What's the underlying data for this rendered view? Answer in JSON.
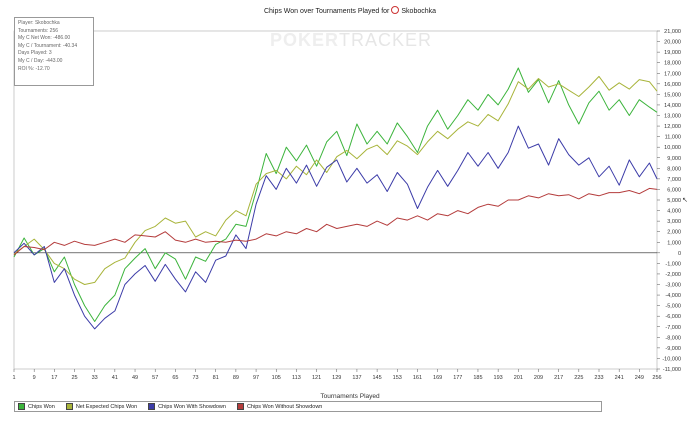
{
  "title_prefix": "Chips Won over Tournaments Played for",
  "title_player": "Skobochka",
  "stats": [
    "Player: Skobochka",
    "Tournaments: 256",
    "My C Net Won: -486.00",
    "My C / Tournament: -40.34",
    "Days Played: 3",
    "My C / Day: -443.00",
    "ROI %: -12.70"
  ],
  "watermark": {
    "a": "POKER",
    "b": "TRACKER"
  },
  "cursor_icon": "mouse-cursor-icon",
  "chart_data": {
    "type": "line",
    "xlabel": "Tournaments Played",
    "x_ticks": [
      "1",
      "9",
      "17",
      "25",
      "33",
      "41",
      "49",
      "57",
      "65",
      "73",
      "81",
      "89",
      "97",
      "105",
      "113",
      "121",
      "129",
      "137",
      "145",
      "153",
      "161",
      "169",
      "177",
      "185",
      "193",
      "201",
      "209",
      "217",
      "225",
      "233",
      "241",
      "249",
      "256"
    ],
    "y_ticks": [
      "21,000",
      "20,000",
      "19,000",
      "18,000",
      "17,000",
      "16,000",
      "15,000",
      "14,000",
      "13,000",
      "12,000",
      "11,000",
      "10,000",
      "9,000",
      "8,000",
      "7,000",
      "6,000",
      "5,000",
      "4,000",
      "3,000",
      "2,000",
      "1,000",
      "0",
      "-1,000",
      "-2,000",
      "-3,000",
      "-4,000",
      "-5,000",
      "-6,000",
      "-7,000",
      "-8,000",
      "-9,000",
      "-10,000",
      "-11,000"
    ],
    "xlim": [
      1,
      256
    ],
    "ylim": [
      -11000,
      21000
    ],
    "series": [
      {
        "name": "Chips Won",
        "color": "#3cb43c",
        "points": [
          [
            1,
            -400
          ],
          [
            5,
            1400
          ],
          [
            9,
            -200
          ],
          [
            13,
            400
          ],
          [
            17,
            -1800
          ],
          [
            21,
            -400
          ],
          [
            25,
            -3000
          ],
          [
            29,
            -5000
          ],
          [
            33,
            -6500
          ],
          [
            37,
            -5000
          ],
          [
            41,
            -4000
          ],
          [
            45,
            -1500
          ],
          [
            49,
            -500
          ],
          [
            53,
            400
          ],
          [
            57,
            -1500
          ],
          [
            61,
            0
          ],
          [
            65,
            -600
          ],
          [
            69,
            -2500
          ],
          [
            73,
            -400
          ],
          [
            77,
            -800
          ],
          [
            81,
            800
          ],
          [
            85,
            1300
          ],
          [
            89,
            2700
          ],
          [
            93,
            2500
          ],
          [
            97,
            5800
          ],
          [
            101,
            9400
          ],
          [
            105,
            7500
          ],
          [
            109,
            10000
          ],
          [
            113,
            8700
          ],
          [
            117,
            10200
          ],
          [
            121,
            8200
          ],
          [
            125,
            10500
          ],
          [
            129,
            11500
          ],
          [
            133,
            9200
          ],
          [
            137,
            12200
          ],
          [
            141,
            10300
          ],
          [
            145,
            11500
          ],
          [
            149,
            10300
          ],
          [
            153,
            12300
          ],
          [
            157,
            11000
          ],
          [
            161,
            9500
          ],
          [
            165,
            12000
          ],
          [
            169,
            13500
          ],
          [
            173,
            11700
          ],
          [
            177,
            13000
          ],
          [
            181,
            14500
          ],
          [
            185,
            13500
          ],
          [
            189,
            15000
          ],
          [
            193,
            14000
          ],
          [
            197,
            15500
          ],
          [
            201,
            17500
          ],
          [
            205,
            15200
          ],
          [
            209,
            16400
          ],
          [
            213,
            14200
          ],
          [
            217,
            16300
          ],
          [
            221,
            14000
          ],
          [
            225,
            12200
          ],
          [
            229,
            14200
          ],
          [
            233,
            15300
          ],
          [
            237,
            13500
          ],
          [
            241,
            14500
          ],
          [
            245,
            13000
          ],
          [
            249,
            14500
          ],
          [
            253,
            13800
          ],
          [
            256,
            13300
          ]
        ]
      },
      {
        "name": "Net Expected Chips Won",
        "color": "#a8b43a",
        "points": [
          [
            1,
            -100
          ],
          [
            5,
            600
          ],
          [
            9,
            1300
          ],
          [
            13,
            300
          ],
          [
            17,
            -1000
          ],
          [
            21,
            -1500
          ],
          [
            25,
            -2500
          ],
          [
            29,
            -3000
          ],
          [
            33,
            -2800
          ],
          [
            37,
            -1500
          ],
          [
            41,
            -900
          ],
          [
            45,
            -500
          ],
          [
            49,
            1000
          ],
          [
            53,
            2100
          ],
          [
            57,
            2500
          ],
          [
            61,
            3300
          ],
          [
            65,
            2800
          ],
          [
            69,
            3000
          ],
          [
            73,
            1500
          ],
          [
            77,
            2000
          ],
          [
            81,
            1600
          ],
          [
            85,
            3100
          ],
          [
            89,
            4000
          ],
          [
            93,
            3500
          ],
          [
            97,
            6500
          ],
          [
            101,
            7500
          ],
          [
            105,
            7800
          ],
          [
            109,
            7000
          ],
          [
            113,
            8200
          ],
          [
            117,
            7400
          ],
          [
            121,
            8800
          ],
          [
            125,
            7600
          ],
          [
            129,
            9100
          ],
          [
            133,
            9700
          ],
          [
            137,
            8900
          ],
          [
            141,
            9800
          ],
          [
            145,
            10200
          ],
          [
            149,
            9300
          ],
          [
            153,
            10600
          ],
          [
            157,
            10100
          ],
          [
            161,
            9300
          ],
          [
            165,
            10500
          ],
          [
            169,
            11500
          ],
          [
            173,
            10800
          ],
          [
            177,
            11700
          ],
          [
            181,
            12400
          ],
          [
            185,
            12000
          ],
          [
            189,
            13100
          ],
          [
            193,
            12500
          ],
          [
            197,
            14100
          ],
          [
            201,
            16200
          ],
          [
            205,
            15500
          ],
          [
            209,
            16500
          ],
          [
            213,
            15700
          ],
          [
            217,
            16000
          ],
          [
            221,
            15400
          ],
          [
            225,
            14800
          ],
          [
            229,
            15700
          ],
          [
            233,
            16700
          ],
          [
            237,
            15400
          ],
          [
            241,
            16100
          ],
          [
            245,
            15500
          ],
          [
            249,
            16400
          ],
          [
            253,
            16200
          ],
          [
            256,
            15300
          ]
        ]
      },
      {
        "name": "Chips Won With Showdown",
        "color": "#3c3ca8",
        "points": [
          [
            1,
            0
          ],
          [
            5,
            900
          ],
          [
            9,
            -200
          ],
          [
            13,
            600
          ],
          [
            17,
            -2800
          ],
          [
            21,
            -1500
          ],
          [
            25,
            -4000
          ],
          [
            29,
            -6000
          ],
          [
            33,
            -7200
          ],
          [
            37,
            -6200
          ],
          [
            41,
            -5500
          ],
          [
            45,
            -3000
          ],
          [
            49,
            -2000
          ],
          [
            53,
            -1200
          ],
          [
            57,
            -2700
          ],
          [
            61,
            -1100
          ],
          [
            65,
            -2500
          ],
          [
            69,
            -3700
          ],
          [
            73,
            -1800
          ],
          [
            77,
            -2800
          ],
          [
            81,
            -700
          ],
          [
            85,
            -300
          ],
          [
            89,
            1700
          ],
          [
            93,
            400
          ],
          [
            97,
            4600
          ],
          [
            101,
            7300
          ],
          [
            105,
            6000
          ],
          [
            109,
            8000
          ],
          [
            113,
            6600
          ],
          [
            117,
            8300
          ],
          [
            121,
            6300
          ],
          [
            125,
            8100
          ],
          [
            129,
            8800
          ],
          [
            133,
            6700
          ],
          [
            137,
            8000
          ],
          [
            141,
            6600
          ],
          [
            145,
            7400
          ],
          [
            149,
            5800
          ],
          [
            153,
            7600
          ],
          [
            157,
            6500
          ],
          [
            161,
            4200
          ],
          [
            165,
            6200
          ],
          [
            169,
            7800
          ],
          [
            173,
            6300
          ],
          [
            177,
            7800
          ],
          [
            181,
            9500
          ],
          [
            185,
            8200
          ],
          [
            189,
            9500
          ],
          [
            193,
            8000
          ],
          [
            197,
            9500
          ],
          [
            201,
            12000
          ],
          [
            205,
            9900
          ],
          [
            209,
            10300
          ],
          [
            213,
            8300
          ],
          [
            217,
            10800
          ],
          [
            221,
            9300
          ],
          [
            225,
            8300
          ],
          [
            229,
            9000
          ],
          [
            233,
            7200
          ],
          [
            237,
            8200
          ],
          [
            241,
            6400
          ],
          [
            245,
            8800
          ],
          [
            249,
            7200
          ],
          [
            253,
            8500
          ],
          [
            256,
            7000
          ]
        ]
      },
      {
        "name": "Chips Won Without Showdown",
        "color": "#b43c3c",
        "points": [
          [
            1,
            -200
          ],
          [
            5,
            600
          ],
          [
            9,
            500
          ],
          [
            13,
            300
          ],
          [
            17,
            1000
          ],
          [
            21,
            700
          ],
          [
            25,
            1100
          ],
          [
            29,
            800
          ],
          [
            33,
            700
          ],
          [
            37,
            1000
          ],
          [
            41,
            1300
          ],
          [
            45,
            1000
          ],
          [
            49,
            1700
          ],
          [
            53,
            1600
          ],
          [
            57,
            1500
          ],
          [
            61,
            2000
          ],
          [
            65,
            1200
          ],
          [
            69,
            1000
          ],
          [
            73,
            1300
          ],
          [
            77,
            1000
          ],
          [
            81,
            1100
          ],
          [
            85,
            1000
          ],
          [
            89,
            1200
          ],
          [
            93,
            1100
          ],
          [
            97,
            1300
          ],
          [
            101,
            1800
          ],
          [
            105,
            1600
          ],
          [
            109,
            2000
          ],
          [
            113,
            1800
          ],
          [
            117,
            2300
          ],
          [
            121,
            2000
          ],
          [
            125,
            2700
          ],
          [
            129,
            2300
          ],
          [
            133,
            2500
          ],
          [
            137,
            2700
          ],
          [
            141,
            2500
          ],
          [
            145,
            3000
          ],
          [
            149,
            2600
          ],
          [
            153,
            3300
          ],
          [
            157,
            3100
          ],
          [
            161,
            3500
          ],
          [
            165,
            3100
          ],
          [
            169,
            3700
          ],
          [
            173,
            3500
          ],
          [
            177,
            4000
          ],
          [
            181,
            3700
          ],
          [
            185,
            4300
          ],
          [
            189,
            4600
          ],
          [
            193,
            4400
          ],
          [
            197,
            5000
          ],
          [
            201,
            5000
          ],
          [
            205,
            5400
          ],
          [
            209,
            5200
          ],
          [
            213,
            5600
          ],
          [
            217,
            5400
          ],
          [
            221,
            5500
          ],
          [
            225,
            5100
          ],
          [
            229,
            5600
          ],
          [
            233,
            5400
          ],
          [
            237,
            5700
          ],
          [
            241,
            5700
          ],
          [
            245,
            5900
          ],
          [
            249,
            5600
          ],
          [
            253,
            6100
          ],
          [
            256,
            6000
          ]
        ]
      }
    ]
  }
}
